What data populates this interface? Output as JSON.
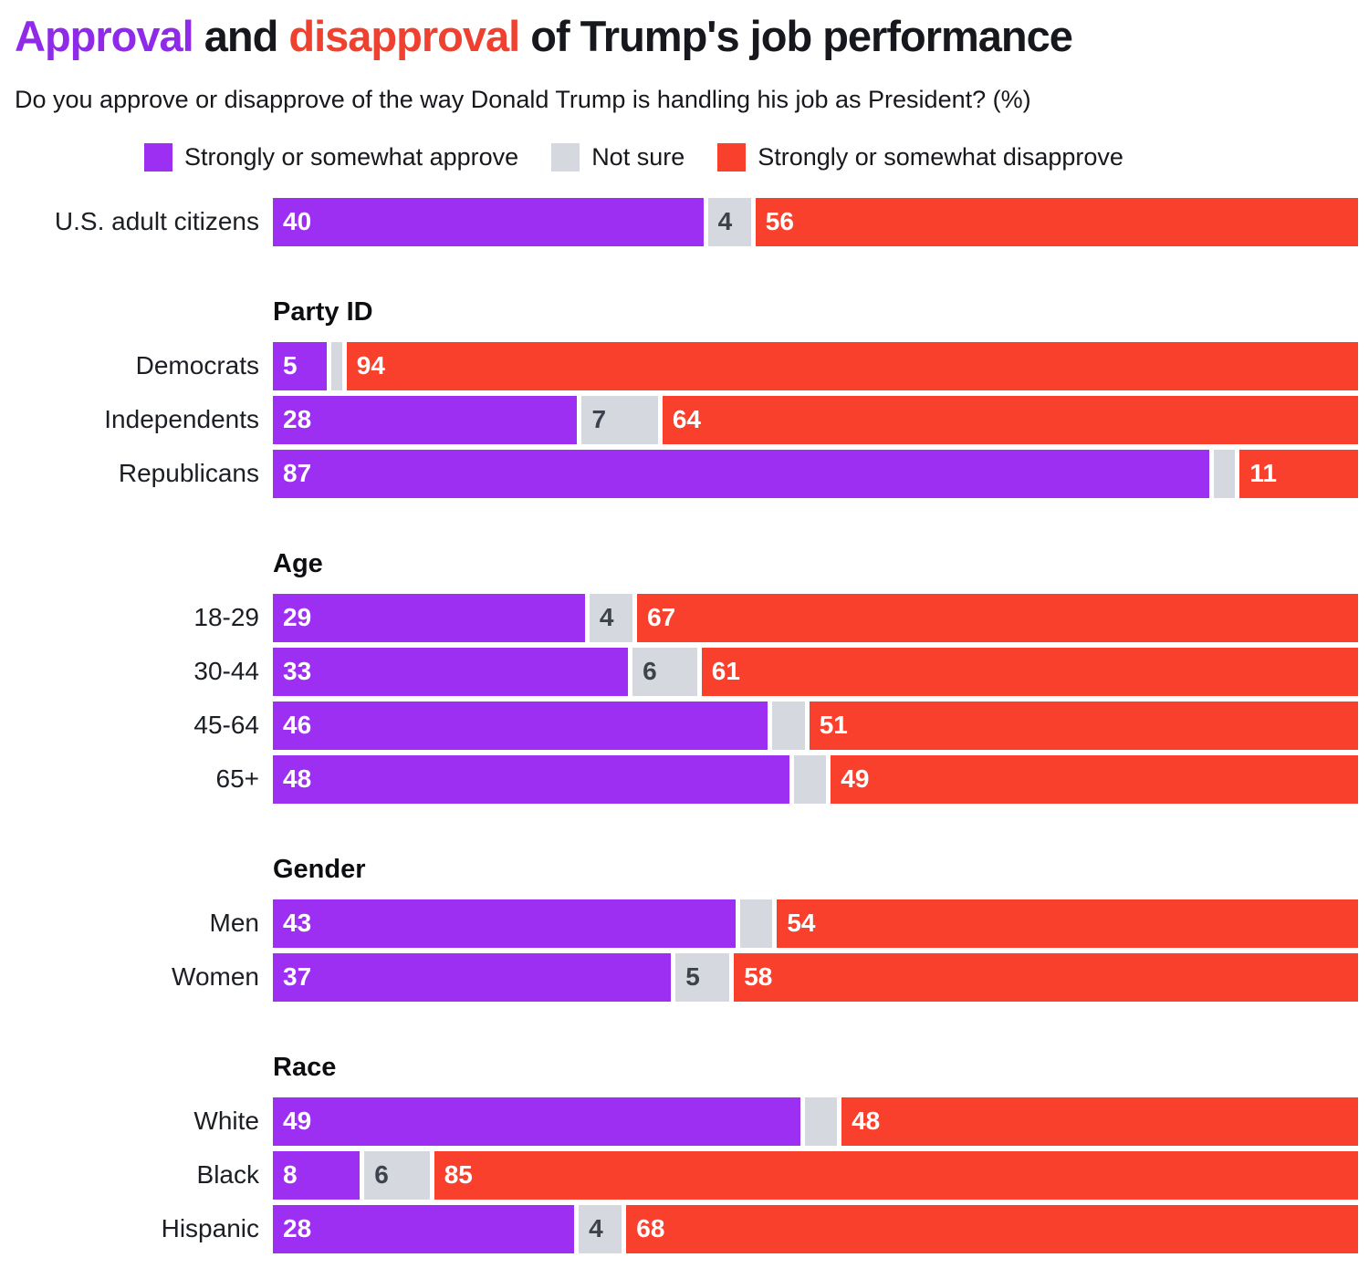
{
  "title": {
    "part1": "Approval",
    "part2": " and ",
    "part3": "disapproval",
    "part4": " of Trump's job performance"
  },
  "subtitle": "Do you approve or disapprove of the way Donald Trump is handling his job as President? (%)",
  "legend": [
    {
      "label": "Strongly or somewhat approve",
      "color": "#9d2ff3"
    },
    {
      "label": "Not sure",
      "color": "#d5d8de"
    },
    {
      "label": "Strongly or somewhat disapprove",
      "color": "#f8402c"
    }
  ],
  "colors": {
    "approve": "#9d2ff3",
    "not_sure": "#d5d8de",
    "disapprove": "#f8402c",
    "label_on_color": "#ffffff",
    "label_on_gray": "#3d424c",
    "title_approve": "#8f2be8",
    "title_disapprove": "#ee4130"
  },
  "chart_data": {
    "type": "bar",
    "orientation": "horizontal_stacked",
    "x_max": 100,
    "series_names": [
      "Strongly or somewhat approve",
      "Not sure",
      "Strongly or somewhat disapprove"
    ],
    "groups": [
      {
        "header": "",
        "rows": [
          {
            "label": "U.S. adult citizens",
            "values": [
              40,
              4,
              56
            ],
            "value_labels": [
              "40",
              "4",
              "56"
            ]
          }
        ]
      },
      {
        "header": "Party ID",
        "rows": [
          {
            "label": "Democrats",
            "values": [
              5,
              1,
              94
            ],
            "value_labels": [
              "5",
              "",
              "94"
            ]
          },
          {
            "label": "Independents",
            "values": [
              28,
              7,
              64
            ],
            "value_labels": [
              "28",
              "7",
              "64"
            ]
          },
          {
            "label": "Republicans",
            "values": [
              87,
              2,
              11
            ],
            "value_labels": [
              "87",
              "",
              "11"
            ]
          }
        ]
      },
      {
        "header": "Age",
        "rows": [
          {
            "label": "18-29",
            "values": [
              29,
              4,
              67
            ],
            "value_labels": [
              "29",
              "4",
              "67"
            ]
          },
          {
            "label": "30-44",
            "values": [
              33,
              6,
              61
            ],
            "value_labels": [
              "33",
              "6",
              "61"
            ]
          },
          {
            "label": "45-64",
            "values": [
              46,
              3,
              51
            ],
            "value_labels": [
              "46",
              "",
              "51"
            ]
          },
          {
            "label": "65+",
            "values": [
              48,
              3,
              49
            ],
            "value_labels": [
              "48",
              "",
              "49"
            ]
          }
        ]
      },
      {
        "header": "Gender",
        "rows": [
          {
            "label": "Men",
            "values": [
              43,
              3,
              54
            ],
            "value_labels": [
              "43",
              "",
              "54"
            ]
          },
          {
            "label": "Women",
            "values": [
              37,
              5,
              58
            ],
            "value_labels": [
              "37",
              "5",
              "58"
            ]
          }
        ]
      },
      {
        "header": "Race",
        "rows": [
          {
            "label": "White",
            "values": [
              49,
              3,
              48
            ],
            "value_labels": [
              "49",
              "",
              "48"
            ]
          },
          {
            "label": "Black",
            "values": [
              8,
              6,
              85
            ],
            "value_labels": [
              "8",
              "6",
              "85"
            ]
          },
          {
            "label": "Hispanic",
            "values": [
              28,
              4,
              68
            ],
            "value_labels": [
              "28",
              "4",
              "68"
            ]
          }
        ]
      }
    ]
  }
}
